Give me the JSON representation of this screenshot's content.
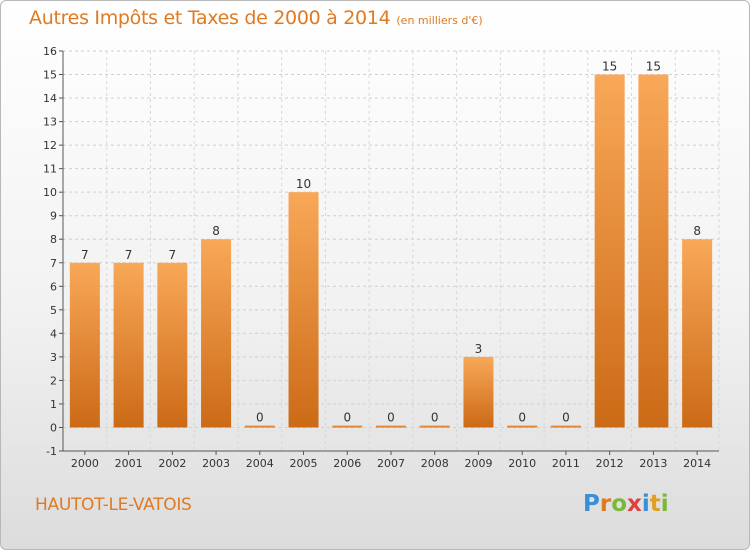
{
  "title": "Autres Impôts et Taxes de 2000 à 2014",
  "subtitle": "(en milliers d'€)",
  "commune": "HAUTOT-LE-VATOIS",
  "logo": {
    "letters": [
      "P",
      "r",
      "o",
      "x",
      "i",
      "t",
      "i"
    ],
    "colors": [
      "#3a8fd6",
      "#e07a1f",
      "#7ab83a",
      "#e04040",
      "#3a8fd6",
      "#e0a020",
      "#7ab83a"
    ]
  },
  "colors": {
    "bar_top": "#f8a858",
    "bar_bottom": "#cc6a16",
    "label": "#333333"
  },
  "chart_data": {
    "type": "bar",
    "categories": [
      "2000",
      "2001",
      "2002",
      "2003",
      "2004",
      "2005",
      "2006",
      "2007",
      "2008",
      "2009",
      "2010",
      "2011",
      "2012",
      "2013",
      "2014"
    ],
    "values": [
      7,
      7,
      7,
      8,
      0,
      10,
      0,
      0,
      0,
      3,
      0,
      0,
      15,
      15,
      8
    ],
    "data_labels": [
      "7",
      "7",
      "7",
      "8",
      "0",
      "10",
      "0",
      "0",
      "0",
      "3",
      "0",
      "0",
      "15",
      "15",
      "8"
    ],
    "yticks": [
      "-1",
      "0",
      "1",
      "2",
      "3",
      "4",
      "5",
      "6",
      "7",
      "8",
      "9",
      "10",
      "11",
      "12",
      "13",
      "14",
      "15",
      "16"
    ],
    "ylim": [
      -1,
      16
    ],
    "grid": true
  }
}
